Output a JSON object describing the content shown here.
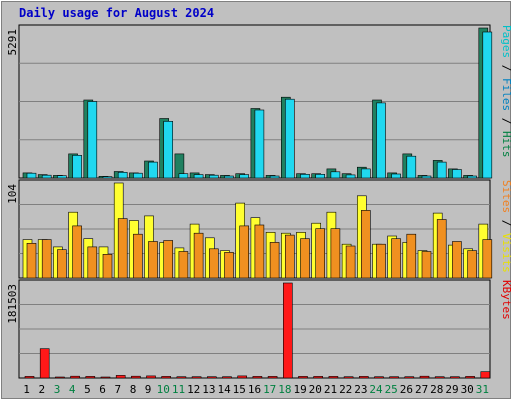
{
  "chart_data": {
    "type": "bar",
    "title": "Daily usage for August 2024",
    "days": [
      "1",
      "2",
      "3",
      "4",
      "5",
      "6",
      "7",
      "8",
      "9",
      "10",
      "11",
      "12",
      "13",
      "14",
      "15",
      "16",
      "17",
      "18",
      "19",
      "20",
      "21",
      "22",
      "23",
      "24",
      "25",
      "26",
      "27",
      "28",
      "29",
      "30",
      "31"
    ],
    "weekend_days": [
      "3",
      "4",
      "10",
      "11",
      "17",
      "18",
      "24",
      "25",
      "31"
    ],
    "panels": [
      {
        "id": "hits",
        "scale_label": "5291",
        "ymax": 5291,
        "right_labels": [
          {
            "text": "Pages",
            "color": "#00c0c8"
          },
          {
            "text": " / ",
            "color": "#000000"
          },
          {
            "text": "Files",
            "color": "#0080c0"
          },
          {
            "text": " / ",
            "color": "#000000"
          },
          {
            "text": "Hits",
            "color": "#008040"
          }
        ],
        "series": [
          {
            "key": "hits",
            "color": "#208060",
            "values": [
              180,
              120,
              90,
              850,
              2750,
              60,
              230,
              180,
              600,
              2100,
              850,
              180,
              120,
              90,
              150,
              2450,
              90,
              2850,
              150,
              150,
              320,
              150,
              380,
              2750,
              180,
              850,
              90,
              620,
              320,
              90,
              5291
            ]
          },
          {
            "key": "files",
            "color": "#20d8f0",
            "values": [
              170,
              100,
              80,
              800,
              2700,
              50,
              200,
              170,
              560,
              2000,
              150,
              120,
              100,
              70,
              120,
              2400,
              70,
              2780,
              130,
              130,
              220,
              110,
              320,
              2650,
              140,
              770,
              70,
              560,
              300,
              70,
              5150
            ]
          }
        ]
      },
      {
        "id": "visits",
        "scale_label": "104",
        "ymax": 104,
        "right_labels": [
          {
            "text": "Sites",
            "color": "#f08020"
          },
          {
            "text": " / ",
            "color": "#000000"
          },
          {
            "text": "Visits",
            "color": "#e8e000"
          }
        ],
        "series": [
          {
            "key": "visits",
            "color": "#ffff30",
            "values": [
              42,
              42,
              34,
              72,
              43,
              34,
              104,
              63,
              68,
              39,
              33,
              59,
              44,
              30,
              82,
              66,
              50,
              49,
              50,
              60,
              72,
              37,
              90,
              37,
              46,
              39,
              30,
              71,
              36,
              32,
              59
            ]
          },
          {
            "key": "sites",
            "color": "#f09020",
            "values": [
              38,
              42,
              31,
              57,
              34,
              26,
              65,
              48,
              40,
              41,
              29,
              49,
              32,
              28,
              57,
              58,
              39,
              47,
              43,
              54,
              54,
              35,
              74,
              37,
              43,
              48,
              29,
              64,
              40,
              30,
              42
            ]
          }
        ]
      },
      {
        "id": "kbytes",
        "scale_label": "181503",
        "ymax": 181503,
        "right_labels": [
          {
            "text": "KBytes",
            "color": "#e00000"
          }
        ],
        "series": [
          {
            "key": "kbytes",
            "color": "#ff1818",
            "values": [
              3000,
              56000,
              2000,
              3500,
              3000,
              1500,
              5000,
              3500,
              4000,
              3000,
              2500,
              2500,
              2500,
              2500,
              4000,
              3000,
              3000,
              181503,
              3000,
              3000,
              3000,
              2500,
              3000,
              2500,
              2500,
              2500,
              3500,
              2500,
              2500,
              3000,
              12000
            ]
          }
        ]
      }
    ]
  }
}
